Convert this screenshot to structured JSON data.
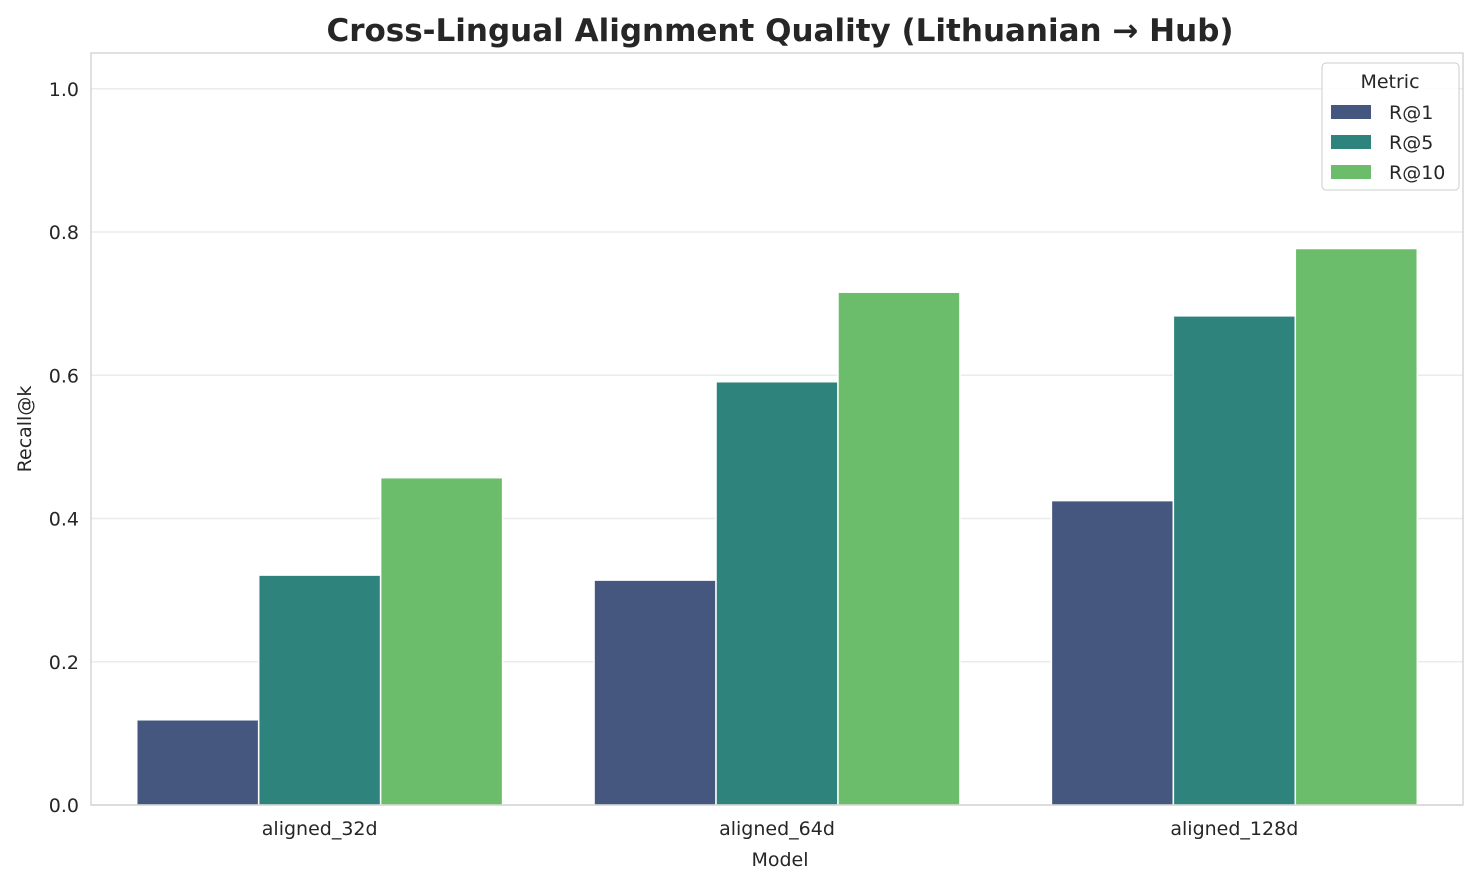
{
  "chart_data": {
    "type": "bar",
    "title": "Cross-Lingual Alignment Quality (Lithuanian → Hub)",
    "xlabel": "Model",
    "ylabel": "Recall@k",
    "categories": [
      "aligned_32d",
      "aligned_64d",
      "aligned_128d"
    ],
    "series": [
      {
        "name": "R@1",
        "color": "#45567f",
        "values": [
          0.119,
          0.314,
          0.425
        ]
      },
      {
        "name": "R@5",
        "color": "#2e837d",
        "values": [
          0.321,
          0.591,
          0.683
        ]
      },
      {
        "name": "R@10",
        "color": "#6bbd6b",
        "values": [
          0.457,
          0.716,
          0.777
        ]
      }
    ],
    "ylim": [
      0,
      1.05
    ],
    "yticks": [
      "0.0",
      "0.2",
      "0.4",
      "0.6",
      "0.8",
      "1.0"
    ],
    "grid": true,
    "legend": {
      "title": "Metric",
      "placement": "top-right"
    }
  }
}
